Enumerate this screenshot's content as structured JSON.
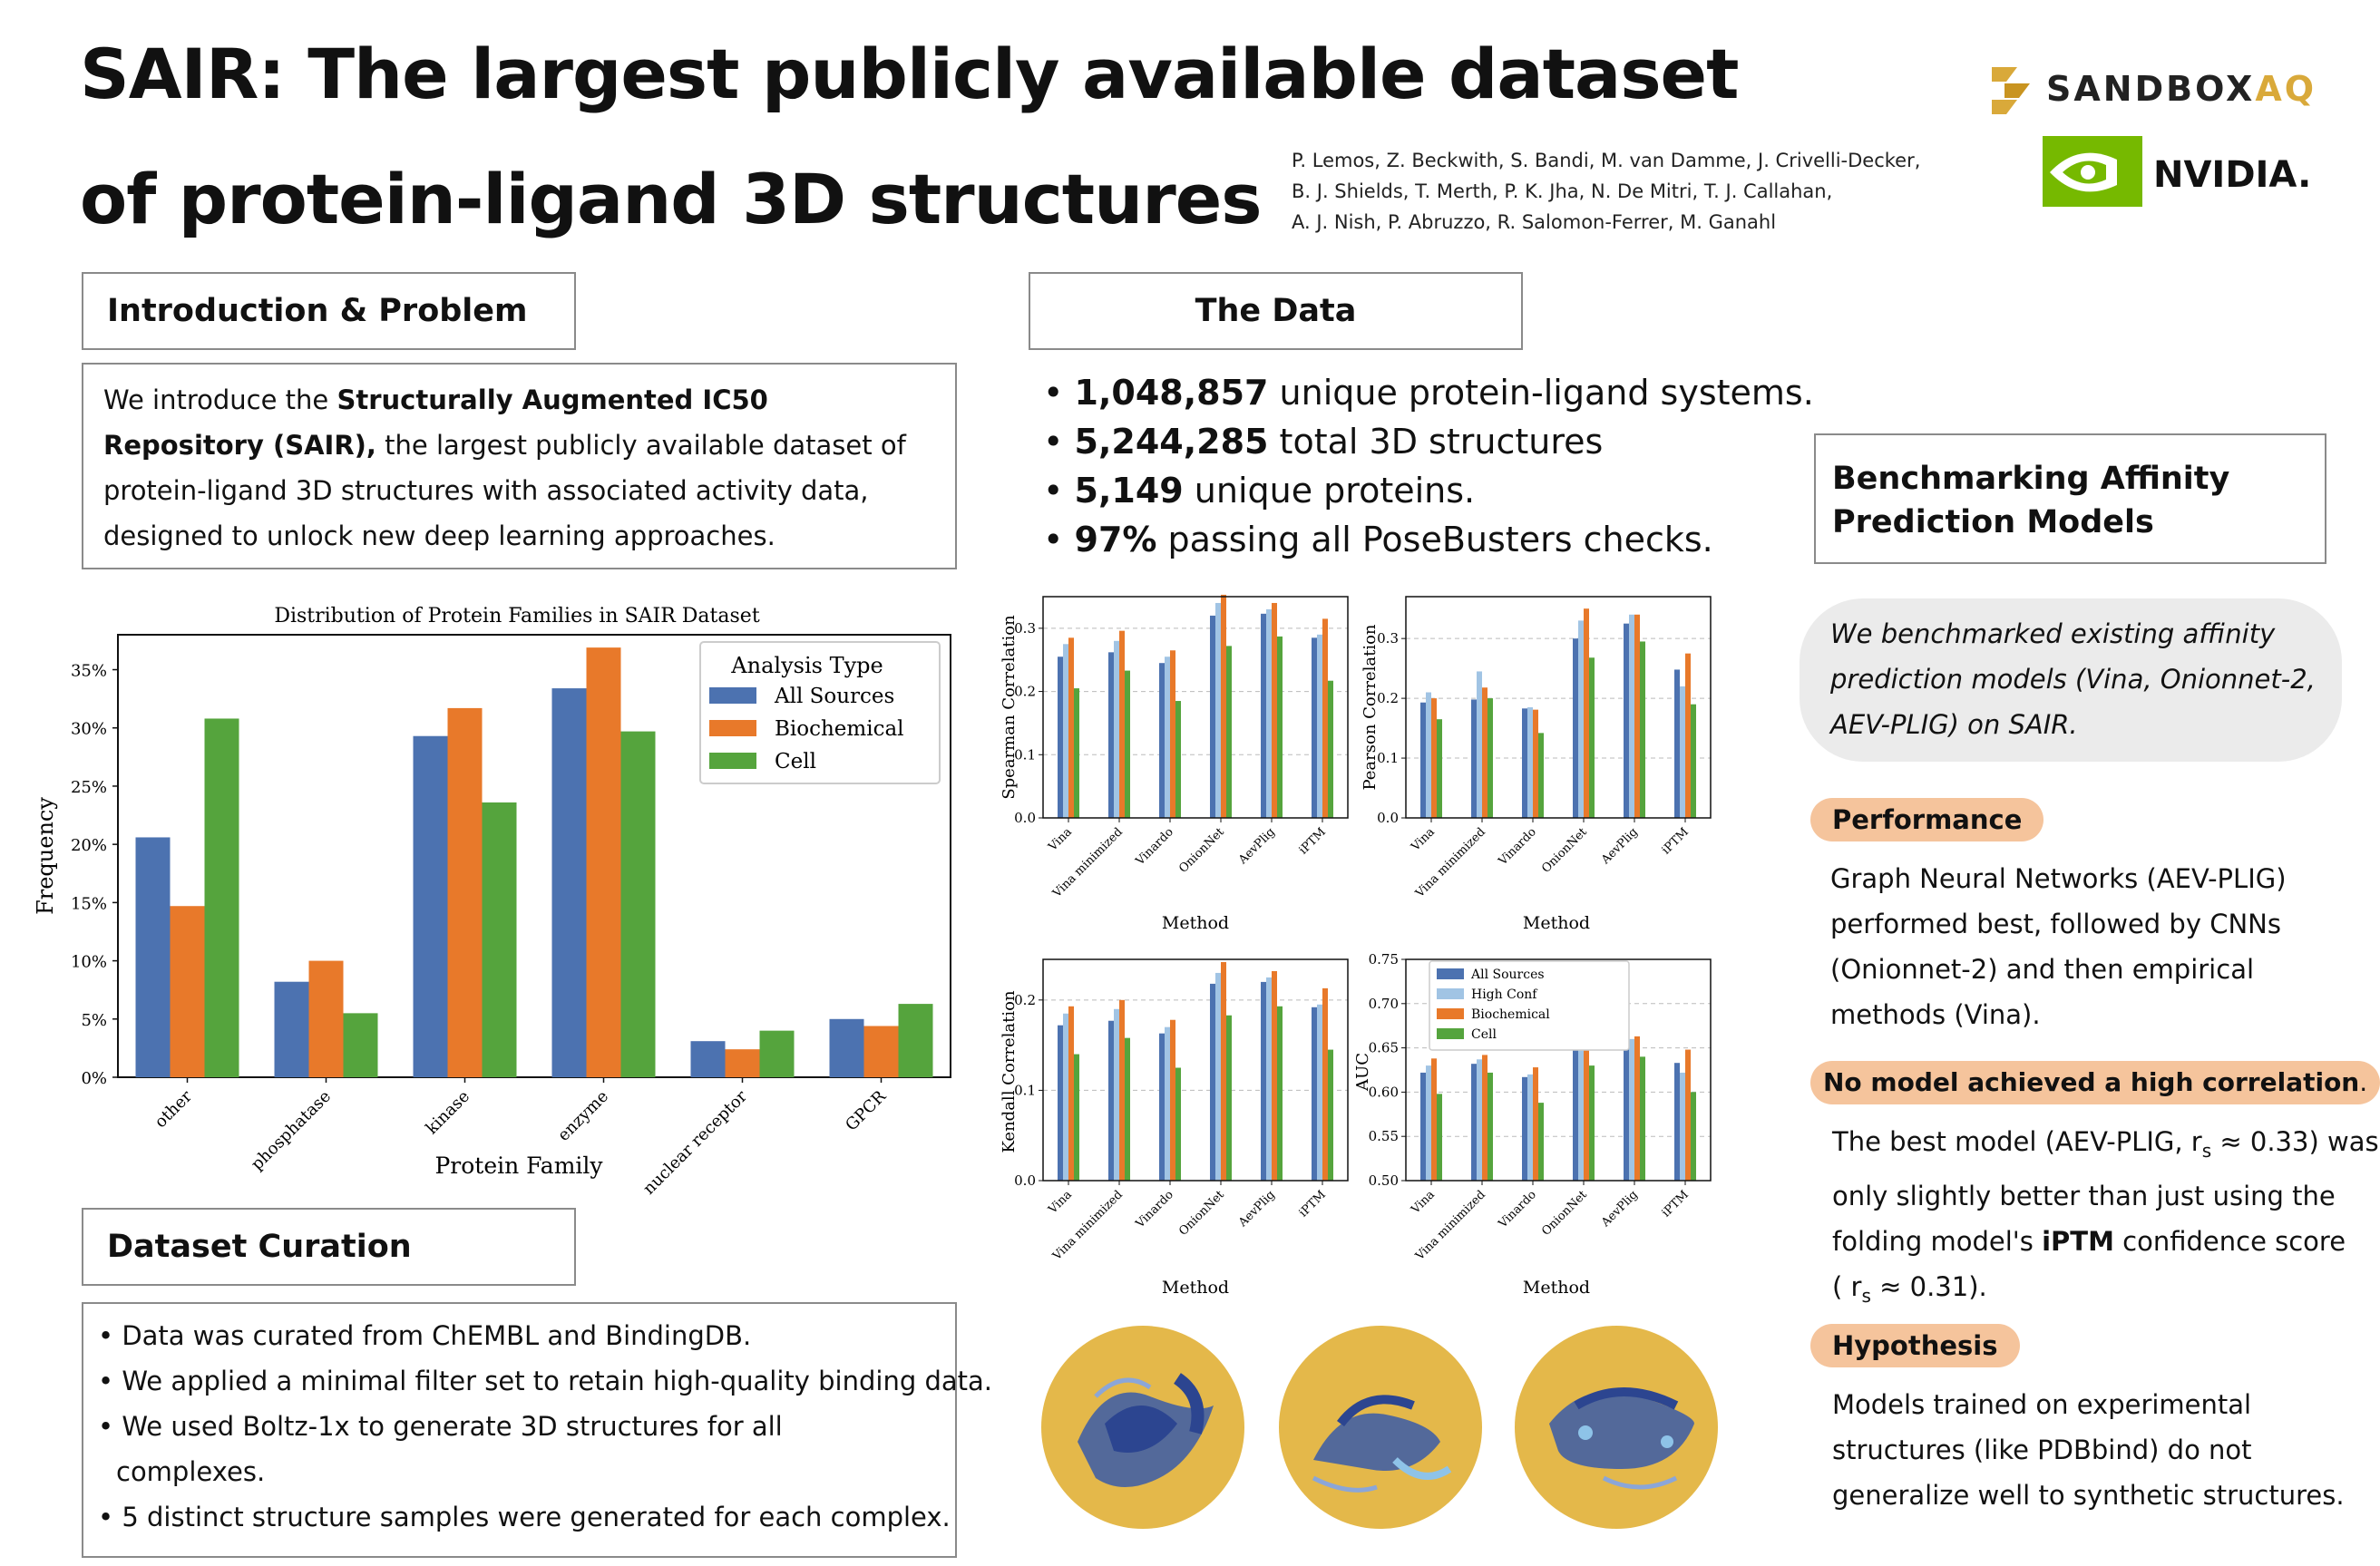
{
  "title": {
    "line1": "SAIR: The largest publicly available dataset",
    "line2": "of protein-ligand 3D structures"
  },
  "authors": [
    "P. Lemos, Z. Beckwith, S. Bandi, M. van Damme, J. Crivelli-Decker,",
    "B. J. Shields, T. Merth, P. K. Jha, N. De Mitri, T. J. Callahan,",
    "A. J. Nish, P. Abruzzo, R. Salomon-Ferrer, M. Ganahl"
  ],
  "logos": {
    "sandbox_text": "SANDBOX",
    "sandbox_aq": "AQ",
    "nvidia_text": "NVIDIA."
  },
  "intro": {
    "header": "Introduction & Problem",
    "pre": "We introduce the ",
    "bold": "Structurally Augmented IC50 Repository (SAIR),",
    "post": " the largest publicly available dataset of protein-ligand 3D structures with associated activity data, designed to unlock new deep learning approaches."
  },
  "data_section": {
    "header": "The Data",
    "bullets": [
      {
        "bold": "1,048,857",
        "text": " unique protein-ligand systems."
      },
      {
        "bold": "5,244,285",
        "text": " total 3D structures"
      },
      {
        "bold": "5,149",
        "text": " unique proteins."
      },
      {
        "bold": "97%",
        "text": " passing all PoseBusters checks."
      }
    ]
  },
  "curation": {
    "header": "Dataset Curation",
    "bullets": [
      "Data was curated from ChEMBL and BindingDB.",
      "We applied a minimal filter set to retain high-quality binding data.",
      "We used Boltz-1x to generate 3D structures for all complexes.",
      "5 distinct structure samples were generated for each complex."
    ]
  },
  "bench": {
    "header_line1": "Benchmarking Affinity",
    "header_line2": "Prediction Models",
    "intro_lines": [
      "We benchmarked existing affinity",
      "prediction models (Vina, Onionnet-2,",
      "AEV-PLIG) on SAIR."
    ],
    "performance_label": "Performance",
    "performance_lines": [
      "Graph Neural Networks (AEV-PLIG)",
      "performed best, followed by CNNs",
      "(Onionnet-2) and then empirical",
      "methods (Vina)."
    ],
    "nomodel_label": "No model achieved a high correlation",
    "nomodel_period": ".",
    "nomodel_line1": "The best model (AEV-PLIG, r",
    "nomodel_line1_sub": "s",
    "nomodel_line1_end": " ≈ 0.33) was",
    "nomodel_line2": "only slightly better than just using the",
    "nomodel_line3_pre": "folding model's ",
    "nomodel_line3_bold": "iPTM",
    "nomodel_line3_post": " confidence score",
    "nomodel_line4_pre": "( r",
    "nomodel_line4_sub": "s",
    "nomodel_line4_post": " ≈ 0.31).",
    "hypothesis_label": "Hypothesis",
    "hypothesis_lines": [
      "Models trained on experimental",
      "structures (like PDBbind) do not",
      "generalize well to synthetic structures."
    ]
  },
  "colors": {
    "all": "#4c72b0",
    "high": "#a1c4e4",
    "bio": "#e8792a",
    "cell": "#55a43d",
    "gold": "#e4b84a",
    "nvidia": "#76b900",
    "pill": "#f5c49c"
  },
  "chart_data": [
    {
      "type": "bar",
      "title": "Distribution of Protein Families in SAIR Dataset",
      "xlabel": "Protein Family",
      "ylabel": "Frequency",
      "ylim": [
        0,
        38
      ],
      "yticks": [
        "0%",
        "5%",
        "10%",
        "15%",
        "20%",
        "25%",
        "30%",
        "35%"
      ],
      "legend_title": "Analysis Type",
      "categories": [
        "other",
        "phosphatase",
        "kinase",
        "enzyme",
        "nuclear receptor",
        "GPCR"
      ],
      "series": [
        {
          "name": "All Sources",
          "values": [
            20.6,
            8.2,
            29.3,
            33.4,
            3.1,
            5.0
          ]
        },
        {
          "name": "Biochemical",
          "values": [
            14.7,
            10.0,
            31.7,
            36.9,
            2.4,
            4.4
          ]
        },
        {
          "name": "Cell",
          "values": [
            30.8,
            5.5,
            23.6,
            29.7,
            4.0,
            6.3
          ]
        }
      ]
    },
    {
      "type": "bar",
      "ylabel": "Spearman Correlation",
      "xlabel": "Method",
      "ylim": [
        0,
        0.35
      ],
      "yticks": [
        "0.0",
        "0.1",
        "0.2",
        "0.3"
      ],
      "categories": [
        "Vina",
        "Vina minimized",
        "Vinardo",
        "OnionNet",
        "AevPlig",
        "iPTM"
      ],
      "series": [
        {
          "name": "All Sources",
          "values": [
            0.255,
            0.262,
            0.245,
            0.32,
            0.323,
            0.285
          ]
        },
        {
          "name": "High Conf",
          "values": [
            0.275,
            0.28,
            0.255,
            0.34,
            0.33,
            0.29
          ]
        },
        {
          "name": "Biochemical",
          "values": [
            0.285,
            0.296,
            0.265,
            0.353,
            0.34,
            0.315
          ]
        },
        {
          "name": "Cell",
          "values": [
            0.205,
            0.233,
            0.185,
            0.272,
            0.287,
            0.217
          ]
        }
      ]
    },
    {
      "type": "bar",
      "ylabel": "Pearson Correlation",
      "xlabel": "Method",
      "ylim": [
        0,
        0.37
      ],
      "yticks": [
        "0.0",
        "0.1",
        "0.2",
        "0.3"
      ],
      "categories": [
        "Vina",
        "Vina minimized",
        "Vinardo",
        "OnionNet",
        "AevPlig",
        "iPTM"
      ],
      "series": [
        {
          "name": "All Sources",
          "values": [
            0.193,
            0.198,
            0.183,
            0.3,
            0.325,
            0.248
          ]
        },
        {
          "name": "High Conf",
          "values": [
            0.21,
            0.245,
            0.185,
            0.33,
            0.34,
            0.22
          ]
        },
        {
          "name": "Biochemical",
          "values": [
            0.2,
            0.218,
            0.181,
            0.35,
            0.34,
            0.275
          ]
        },
        {
          "name": "Cell",
          "values": [
            0.165,
            0.2,
            0.142,
            0.268,
            0.295,
            0.19
          ]
        }
      ]
    },
    {
      "type": "bar",
      "ylabel": "Kendall Correlation",
      "xlabel": "Method",
      "ylim": [
        0,
        0.245
      ],
      "yticks": [
        "0.0",
        "0.1",
        "0.2"
      ],
      "categories": [
        "Vina",
        "Vina minimized",
        "Vinardo",
        "OnionNet",
        "AevPlig",
        "iPTM"
      ],
      "series": [
        {
          "name": "All Sources",
          "values": [
            0.172,
            0.177,
            0.163,
            0.218,
            0.22,
            0.192
          ]
        },
        {
          "name": "High Conf",
          "values": [
            0.185,
            0.19,
            0.17,
            0.23,
            0.225,
            0.195
          ]
        },
        {
          "name": "Biochemical",
          "values": [
            0.193,
            0.2,
            0.178,
            0.242,
            0.232,
            0.213
          ]
        },
        {
          "name": "Cell",
          "values": [
            0.14,
            0.158,
            0.125,
            0.183,
            0.193,
            0.145
          ]
        }
      ]
    },
    {
      "type": "bar",
      "ylabel": "AUC",
      "xlabel": "Method",
      "ylim": [
        0.5,
        0.75
      ],
      "yticks": [
        "0.50",
        "0.55",
        "0.60",
        "0.65",
        "0.70",
        "0.75"
      ],
      "legend": [
        "All Sources",
        "High Conf",
        "Biochemical",
        "Cell"
      ],
      "categories": [
        "Vina",
        "Vina minimized",
        "Vinardo",
        "OnionNet",
        "AevPlig",
        "iPTM"
      ],
      "series": [
        {
          "name": "All Sources",
          "values": [
            0.622,
            0.632,
            0.617,
            0.655,
            0.655,
            0.633
          ]
        },
        {
          "name": "High Conf",
          "values": [
            0.63,
            0.637,
            0.62,
            0.66,
            0.66,
            0.622
          ]
        },
        {
          "name": "Biochemical",
          "values": [
            0.638,
            0.642,
            0.628,
            0.668,
            0.663,
            0.648
          ]
        },
        {
          "name": "Cell",
          "values": [
            0.598,
            0.622,
            0.588,
            0.63,
            0.64,
            0.6
          ]
        }
      ]
    }
  ]
}
